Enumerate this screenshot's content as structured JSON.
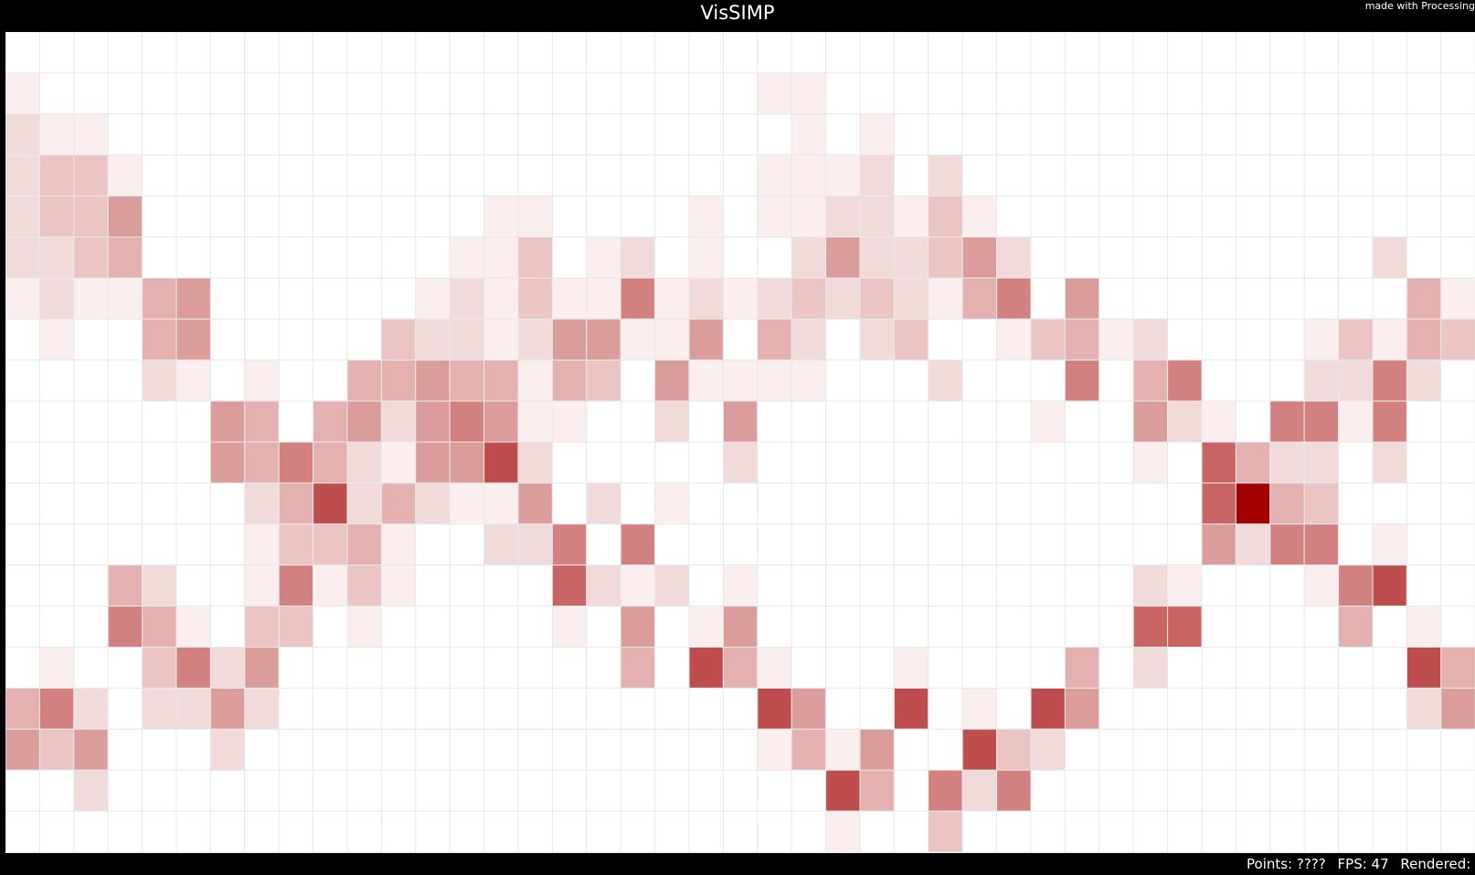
{
  "app": {
    "title": "VisSIMP",
    "credit": "made with Processing"
  },
  "status": {
    "points": "Points: ????",
    "fps": "FPS: 47",
    "rendered": "Rendered: ???"
  },
  "colors": {
    "background": "#000000",
    "canvas": "#ffffff",
    "grid_line": "#e8e8e8",
    "heat_max": "#a30000"
  },
  "chart_data": {
    "type": "heatmap",
    "rows": 20,
    "cols": 43,
    "value_scale": "0 (white) to 9 (dark red)",
    "cells": [
      [
        0,
        0,
        0,
        0,
        0,
        0,
        0,
        0,
        0,
        0,
        0,
        0,
        0,
        0,
        0,
        0,
        0,
        0,
        0,
        0,
        0,
        0,
        0,
        0,
        0,
        0,
        0,
        0,
        0,
        0,
        0,
        0,
        0,
        0,
        0,
        0,
        0,
        0,
        0,
        0,
        0,
        0,
        0
      ],
      [
        1,
        0,
        0,
        0,
        0,
        0,
        0,
        0,
        0,
        0,
        0,
        0,
        0,
        0,
        0,
        0,
        0,
        0,
        0,
        0,
        0,
        0,
        1,
        1,
        0,
        0,
        0,
        0,
        0,
        0,
        0,
        0,
        0,
        0,
        0,
        0,
        0,
        0,
        0,
        0,
        0,
        0,
        0
      ],
      [
        2,
        1,
        1,
        0,
        0,
        0,
        0,
        0,
        0,
        0,
        0,
        0,
        0,
        0,
        0,
        0,
        0,
        0,
        0,
        0,
        0,
        0,
        0,
        1,
        0,
        1,
        0,
        0,
        0,
        0,
        0,
        0,
        0,
        0,
        0,
        0,
        0,
        0,
        0,
        0,
        0,
        0,
        0
      ],
      [
        2,
        3,
        3,
        1,
        0,
        0,
        0,
        0,
        0,
        0,
        0,
        0,
        0,
        0,
        0,
        0,
        0,
        0,
        0,
        0,
        0,
        0,
        1,
        1,
        1,
        2,
        0,
        2,
        0,
        0,
        0,
        0,
        0,
        0,
        0,
        0,
        0,
        0,
        0,
        0,
        0,
        0,
        0
      ],
      [
        2,
        3,
        3,
        5,
        0,
        0,
        0,
        0,
        0,
        0,
        0,
        0,
        0,
        0,
        1,
        1,
        0,
        0,
        0,
        0,
        1,
        0,
        1,
        1,
        2,
        2,
        1,
        3,
        1,
        0,
        0,
        0,
        0,
        0,
        0,
        0,
        0,
        0,
        0,
        0,
        0,
        0,
        0
      ],
      [
        2,
        2,
        3,
        4,
        0,
        0,
        0,
        0,
        0,
        0,
        0,
        0,
        0,
        1,
        1,
        3,
        0,
        1,
        2,
        0,
        1,
        0,
        0,
        2,
        5,
        2,
        2,
        3,
        5,
        2,
        0,
        0,
        0,
        0,
        0,
        0,
        0,
        0,
        0,
        0,
        2,
        0,
        0
      ],
      [
        1,
        2,
        1,
        1,
        4,
        5,
        0,
        0,
        0,
        0,
        0,
        0,
        1,
        2,
        1,
        3,
        1,
        1,
        6,
        1,
        2,
        1,
        2,
        3,
        2,
        3,
        2,
        1,
        4,
        6,
        0,
        5,
        0,
        0,
        0,
        0,
        0,
        0,
        0,
        0,
        0,
        4,
        1
      ],
      [
        0,
        1,
        0,
        0,
        4,
        5,
        0,
        0,
        0,
        0,
        0,
        3,
        2,
        2,
        1,
        2,
        5,
        5,
        1,
        1,
        5,
        0,
        4,
        2,
        0,
        2,
        3,
        0,
        0,
        1,
        3,
        4,
        1,
        2,
        0,
        0,
        0,
        0,
        1,
        3,
        1,
        4,
        3
      ],
      [
        0,
        0,
        0,
        0,
        2,
        1,
        0,
        1,
        0,
        0,
        4,
        4,
        5,
        4,
        4,
        1,
        4,
        3,
        0,
        5,
        1,
        1,
        1,
        1,
        0,
        0,
        0,
        2,
        0,
        0,
        0,
        6,
        0,
        4,
        6,
        0,
        0,
        0,
        2,
        2,
        6,
        2,
        0
      ],
      [
        0,
        0,
        0,
        0,
        0,
        0,
        5,
        4,
        0,
        4,
        5,
        2,
        5,
        6,
        5,
        1,
        1,
        0,
        0,
        2,
        0,
        5,
        0,
        0,
        0,
        0,
        0,
        0,
        0,
        0,
        1,
        0,
        0,
        5,
        2,
        1,
        0,
        6,
        6,
        1,
        6,
        0,
        0
      ],
      [
        0,
        0,
        0,
        0,
        0,
        0,
        5,
        4,
        6,
        4,
        2,
        1,
        5,
        5,
        8,
        2,
        0,
        0,
        0,
        0,
        0,
        2,
        0,
        0,
        0,
        0,
        0,
        0,
        0,
        0,
        0,
        0,
        0,
        1,
        0,
        7,
        4,
        2,
        2,
        0,
        2,
        0,
        0
      ],
      [
        0,
        0,
        0,
        0,
        0,
        0,
        0,
        2,
        4,
        8,
        2,
        4,
        2,
        1,
        1,
        5,
        0,
        2,
        0,
        1,
        0,
        0,
        0,
        0,
        0,
        0,
        0,
        0,
        0,
        0,
        0,
        0,
        0,
        0,
        0,
        7,
        9,
        4,
        3,
        0,
        0,
        0,
        0
      ],
      [
        0,
        0,
        0,
        0,
        0,
        0,
        0,
        1,
        3,
        3,
        4,
        1,
        0,
        0,
        2,
        2,
        6,
        0,
        6,
        0,
        0,
        0,
        0,
        0,
        0,
        0,
        0,
        0,
        0,
        0,
        0,
        0,
        0,
        0,
        0,
        5,
        2,
        6,
        6,
        0,
        1,
        0,
        0
      ],
      [
        0,
        0,
        0,
        4,
        2,
        0,
        0,
        1,
        6,
        1,
        3,
        1,
        0,
        0,
        0,
        0,
        7,
        2,
        1,
        2,
        0,
        1,
        0,
        0,
        0,
        0,
        0,
        0,
        0,
        0,
        0,
        0,
        0,
        2,
        1,
        0,
        0,
        0,
        1,
        6,
        8,
        0,
        0
      ],
      [
        0,
        0,
        0,
        6,
        4,
        1,
        0,
        3,
        3,
        0,
        1,
        0,
        0,
        0,
        0,
        0,
        1,
        0,
        5,
        0,
        1,
        5,
        0,
        0,
        0,
        0,
        0,
        0,
        0,
        0,
        0,
        0,
        0,
        7,
        7,
        0,
        0,
        0,
        0,
        4,
        0,
        1,
        0
      ],
      [
        0,
        1,
        0,
        0,
        3,
        6,
        2,
        5,
        0,
        0,
        0,
        0,
        0,
        0,
        0,
        0,
        0,
        0,
        4,
        0,
        8,
        4,
        1,
        0,
        0,
        0,
        1,
        0,
        0,
        0,
        0,
        4,
        0,
        2,
        0,
        0,
        0,
        0,
        0,
        0,
        0,
        8,
        4
      ],
      [
        4,
        6,
        2,
        0,
        2,
        2,
        5,
        2,
        0,
        0,
        0,
        0,
        0,
        0,
        0,
        0,
        0,
        0,
        0,
        0,
        0,
        0,
        8,
        5,
        0,
        0,
        8,
        0,
        1,
        0,
        8,
        5,
        0,
        0,
        0,
        0,
        0,
        0,
        0,
        0,
        0,
        2,
        5
      ],
      [
        5,
        3,
        5,
        0,
        0,
        0,
        2,
        0,
        0,
        0,
        0,
        0,
        0,
        0,
        0,
        0,
        0,
        0,
        0,
        0,
        0,
        0,
        1,
        4,
        1,
        5,
        0,
        0,
        8,
        3,
        2,
        0,
        0,
        0,
        0,
        0,
        0,
        0,
        0,
        0,
        0,
        0,
        0
      ],
      [
        0,
        0,
        2,
        0,
        0,
        0,
        0,
        0,
        0,
        0,
        0,
        0,
        0,
        0,
        0,
        0,
        0,
        0,
        0,
        0,
        0,
        0,
        0,
        0,
        8,
        4,
        0,
        6,
        2,
        6,
        0,
        0,
        0,
        0,
        0,
        0,
        0,
        0,
        0,
        0,
        0,
        0,
        0
      ],
      [
        0,
        0,
        0,
        0,
        0,
        0,
        0,
        0,
        0,
        0,
        0,
        0,
        0,
        0,
        0,
        0,
        0,
        0,
        0,
        0,
        0,
        0,
        0,
        0,
        1,
        0,
        0,
        3,
        0,
        0,
        0,
        0,
        0,
        0,
        0,
        0,
        0,
        0,
        0,
        0,
        0,
        0,
        0
      ]
    ]
  }
}
